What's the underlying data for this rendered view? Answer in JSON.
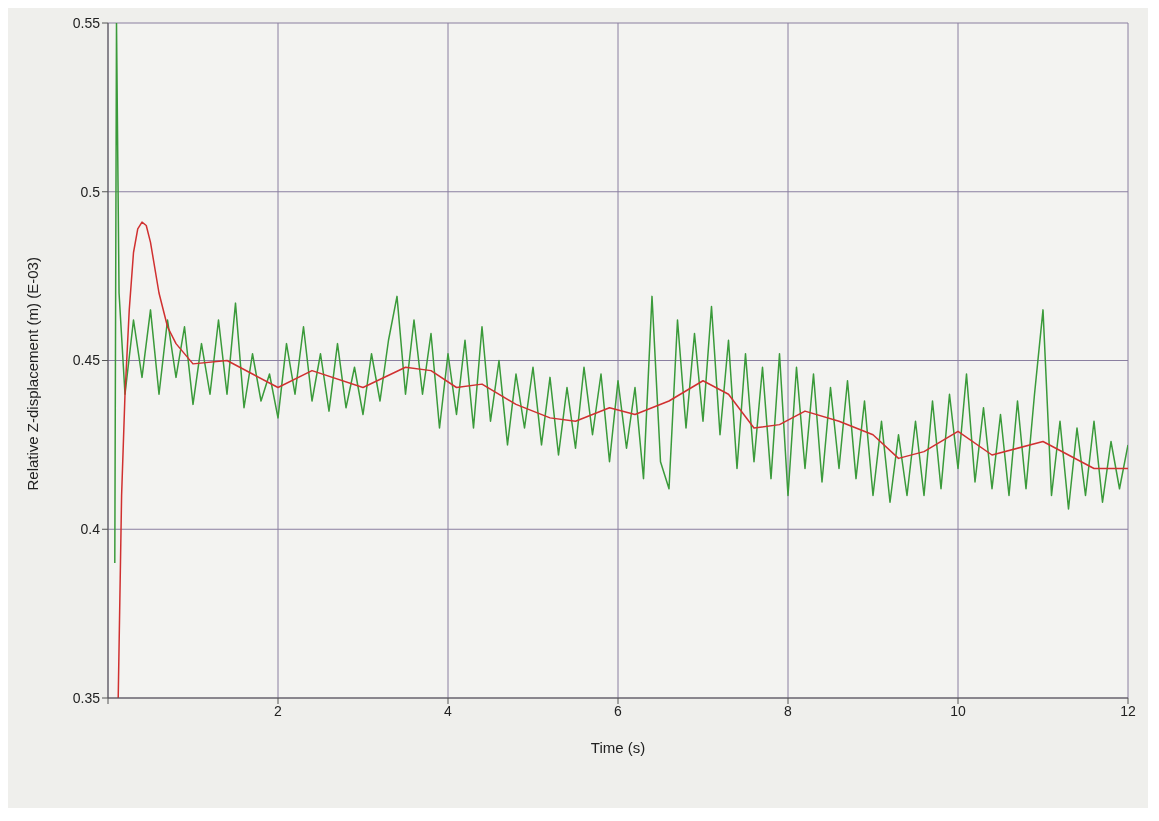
{
  "chart_data": {
    "type": "line",
    "xlabel": "Time (s)",
    "ylabel": "Relative Z-displacement (m) (E-03)",
    "xlim": [
      0,
      12
    ],
    "xticks": [
      {
        "value": 0,
        "label": null
      },
      2,
      4,
      6,
      8,
      10,
      12
    ],
    "ylim": [
      0.35,
      0.55
    ],
    "yticks": [
      0.35,
      0.4,
      0.45,
      0.5,
      0.55
    ],
    "grid": true,
    "marker": "none",
    "line_style": "solid",
    "series": [
      {
        "color": "#3a9a3a",
        "x": [
          0.08,
          0.1,
          0.13,
          0.2,
          0.3,
          0.4,
          0.5,
          0.6,
          0.7,
          0.8,
          0.9,
          1.0,
          1.1,
          1.2,
          1.3,
          1.4,
          1.5,
          1.6,
          1.7,
          1.8,
          1.9,
          2.0,
          2.1,
          2.2,
          2.3,
          2.4,
          2.5,
          2.6,
          2.7,
          2.8,
          2.9,
          3.0,
          3.1,
          3.2,
          3.3,
          3.4,
          3.5,
          3.6,
          3.7,
          3.8,
          3.9,
          4.0,
          4.1,
          4.2,
          4.3,
          4.4,
          4.5,
          4.6,
          4.7,
          4.8,
          4.9,
          5.0,
          5.1,
          5.2,
          5.3,
          5.4,
          5.5,
          5.6,
          5.7,
          5.8,
          5.9,
          6.0,
          6.1,
          6.2,
          6.3,
          6.4,
          6.5,
          6.6,
          6.7,
          6.8,
          6.9,
          7.0,
          7.1,
          7.2,
          7.3,
          7.4,
          7.5,
          7.6,
          7.7,
          7.8,
          7.9,
          8.0,
          8.1,
          8.2,
          8.3,
          8.4,
          8.5,
          8.6,
          8.7,
          8.8,
          8.9,
          9.0,
          9.1,
          9.2,
          9.3,
          9.4,
          9.5,
          9.6,
          9.7,
          9.8,
          9.9,
          10.0,
          10.1,
          10.2,
          10.3,
          10.4,
          10.5,
          10.6,
          10.7,
          10.8,
          10.9,
          11.0,
          11.1,
          11.2,
          11.3,
          11.4,
          11.5,
          11.6,
          11.7,
          11.8,
          11.9,
          12.0
        ],
        "values": [
          0.39,
          0.55,
          0.47,
          0.44,
          0.462,
          0.445,
          0.465,
          0.44,
          0.462,
          0.445,
          0.46,
          0.437,
          0.455,
          0.44,
          0.462,
          0.44,
          0.467,
          0.436,
          0.452,
          0.438,
          0.446,
          0.433,
          0.455,
          0.44,
          0.46,
          0.438,
          0.452,
          0.435,
          0.455,
          0.436,
          0.448,
          0.434,
          0.452,
          0.438,
          0.456,
          0.469,
          0.44,
          0.462,
          0.44,
          0.458,
          0.43,
          0.452,
          0.434,
          0.456,
          0.43,
          0.46,
          0.432,
          0.45,
          0.425,
          0.446,
          0.43,
          0.448,
          0.425,
          0.445,
          0.422,
          0.442,
          0.424,
          0.448,
          0.428,
          0.446,
          0.42,
          0.444,
          0.424,
          0.442,
          0.415,
          0.469,
          0.42,
          0.412,
          0.462,
          0.43,
          0.458,
          0.432,
          0.466,
          0.428,
          0.456,
          0.418,
          0.452,
          0.42,
          0.448,
          0.415,
          0.452,
          0.41,
          0.448,
          0.418,
          0.446,
          0.414,
          0.442,
          0.418,
          0.444,
          0.415,
          0.438,
          0.41,
          0.432,
          0.408,
          0.428,
          0.41,
          0.432,
          0.41,
          0.438,
          0.412,
          0.44,
          0.418,
          0.446,
          0.414,
          0.436,
          0.412,
          0.434,
          0.41,
          0.438,
          0.412,
          0.44,
          0.465,
          0.41,
          0.432,
          0.406,
          0.43,
          0.41,
          0.432,
          0.408,
          0.426,
          0.412,
          0.425
        ]
      },
      {
        "color": "#d03030",
        "x": [
          0.12,
          0.16,
          0.2,
          0.25,
          0.3,
          0.35,
          0.4,
          0.45,
          0.5,
          0.6,
          0.7,
          0.8,
          1.0,
          1.4,
          1.7,
          2.0,
          2.4,
          3.0,
          3.5,
          3.8,
          4.1,
          4.4,
          4.8,
          5.2,
          5.5,
          5.9,
          6.2,
          6.6,
          7.0,
          7.3,
          7.6,
          7.9,
          8.2,
          8.6,
          9.0,
          9.3,
          9.6,
          10.0,
          10.4,
          11.0,
          11.6,
          12.0
        ],
        "values": [
          0.35,
          0.41,
          0.44,
          0.465,
          0.482,
          0.489,
          0.491,
          0.49,
          0.485,
          0.47,
          0.46,
          0.455,
          0.449,
          0.45,
          0.446,
          0.442,
          0.447,
          0.442,
          0.448,
          0.447,
          0.442,
          0.443,
          0.437,
          0.433,
          0.432,
          0.436,
          0.434,
          0.438,
          0.444,
          0.44,
          0.43,
          0.431,
          0.435,
          0.432,
          0.428,
          0.421,
          0.423,
          0.429,
          0.422,
          0.426,
          0.418,
          0.418
        ]
      }
    ]
  }
}
